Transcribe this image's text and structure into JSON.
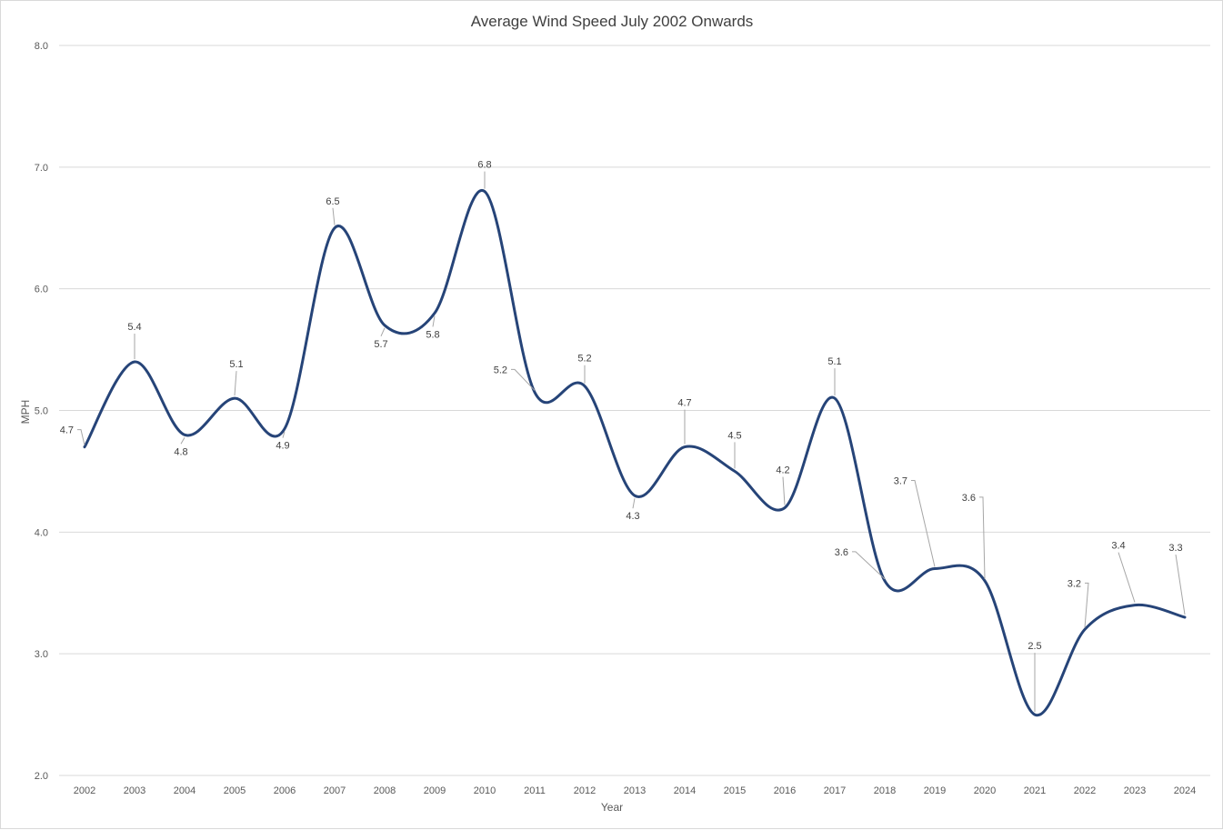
{
  "chart_data": {
    "type": "line",
    "title": "Average Wind Speed July 2002 Onwards",
    "xlabel": "Year",
    "ylabel": "MPH",
    "ylim": [
      2.0,
      8.0
    ],
    "yticks": [
      "2.0",
      "3.0",
      "4.0",
      "5.0",
      "6.0",
      "7.0",
      "8.0"
    ],
    "grid": true,
    "smoothed": true,
    "line_color": "#264478",
    "categories": [
      "2002",
      "2003",
      "2004",
      "2005",
      "2006",
      "2007",
      "2008",
      "2009",
      "2010",
      "2011",
      "2012",
      "2013",
      "2014",
      "2015",
      "2016",
      "2017",
      "2018",
      "2019",
      "2020",
      "2021",
      "2022",
      "2023",
      "2024"
    ],
    "series": [
      {
        "values": [
          4.7,
          5.4,
          4.8,
          5.1,
          4.85,
          6.5,
          5.7,
          5.8,
          6.8,
          5.15,
          5.2,
          4.3,
          4.7,
          4.5,
          4.2,
          5.1,
          3.6,
          3.7,
          3.6,
          2.5,
          3.2,
          3.4,
          3.3
        ],
        "data_labels": [
          "4.7",
          "5.4",
          "4.8",
          "5.1",
          "4.9",
          "6.5",
          "5.7",
          "5.8",
          "6.8",
          "5.2",
          "5.2",
          "4.3",
          "4.7",
          "4.5",
          "4.2",
          "5.1",
          "3.6",
          "3.7",
          "3.6",
          "2.5",
          "3.2",
          "3.4",
          "3.3"
        ]
      }
    ]
  }
}
